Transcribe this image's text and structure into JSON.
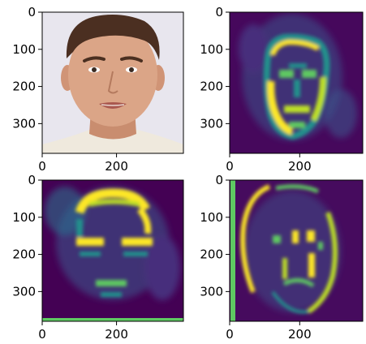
{
  "figure": {
    "layout": "2x2 grid of image panels",
    "background": "#ffffff"
  },
  "chart_data": [
    {
      "type": "image",
      "content": "photo of a man's face (original input)",
      "colormap": "rgb",
      "xlim": [
        0,
        380
      ],
      "ylim": [
        380,
        0
      ],
      "x_ticks": [
        "0",
        "200"
      ],
      "y_ticks": [
        "0",
        "100",
        "200",
        "300"
      ],
      "title": "",
      "xlabel": "",
      "ylabel": ""
    },
    {
      "type": "heatmap",
      "content": "feature map highlighting face outline, eyes and mouth",
      "colormap": "viridis",
      "xlim": [
        0,
        380
      ],
      "ylim": [
        380,
        0
      ],
      "x_ticks": [
        "0",
        "200"
      ],
      "y_ticks": [
        "0",
        "100",
        "200",
        "300"
      ],
      "title": "",
      "xlabel": "",
      "ylabel": ""
    },
    {
      "type": "heatmap",
      "content": "feature map highlighting hairline, eyebrows, eyes and mouth",
      "colormap": "viridis",
      "xlim": [
        0,
        380
      ],
      "ylim": [
        380,
        0
      ],
      "x_ticks": [
        "0",
        "200"
      ],
      "y_ticks": [
        "0",
        "100",
        "200",
        "300"
      ],
      "title": "",
      "xlabel": "",
      "ylabel": ""
    },
    {
      "type": "heatmap",
      "content": "feature map highlighting head contour, eyes, nose and mouth edges",
      "colormap": "viridis",
      "xlim": [
        0,
        380
      ],
      "ylim": [
        380,
        0
      ],
      "x_ticks": [
        "0",
        "200"
      ],
      "y_ticks": [
        "0",
        "100",
        "200",
        "300"
      ],
      "title": "",
      "xlabel": "",
      "ylabel": ""
    }
  ],
  "colors": {
    "viridis_low": "#440154",
    "viridis_low2": "#472d7b",
    "viridis_mid_low": "#3b528b",
    "viridis_mid": "#21918c",
    "viridis_mid_high": "#5ec962",
    "viridis_high": "#fde725",
    "photo_background": "#e8e6ee",
    "skin": "#d9a384",
    "hair": "#4a2f20",
    "shirt": "#f2efe6"
  }
}
